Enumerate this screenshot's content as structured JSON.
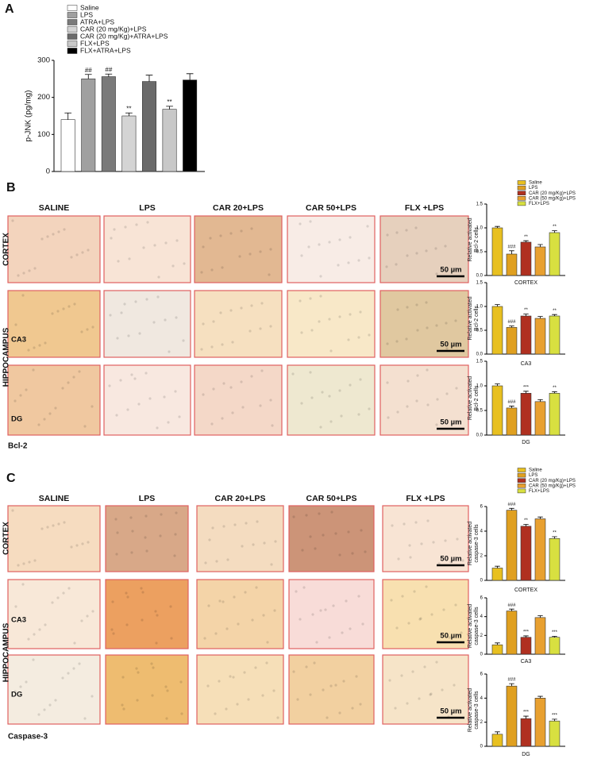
{
  "panels": [
    {
      "letter": "A"
    },
    {
      "letter": "B",
      "columns": [
        "SALINE",
        "LPS",
        "CAR 20+LPS",
        "CAR 50+LPS",
        "FLX +LPS"
      ],
      "rows": [
        "CORTEX",
        "HIPPOCAMPUS"
      ],
      "regions": [
        "CA3",
        "DG"
      ],
      "scale_bars": [
        "50 µm",
        "50 µm",
        "50 µm"
      ],
      "caption": "Bcl-2"
    },
    {
      "letter": "C",
      "columns": [
        "SALINE",
        "LPS",
        "CAR 20+LPS",
        "CAR 50+LPS",
        "FLX +LPS"
      ],
      "rows": [
        "CORTEX",
        "HIPPOCAMPUS"
      ],
      "regions": [
        "CA3",
        "DG"
      ],
      "scale_bars": [
        "50 µm",
        "50 µm",
        "50 µm"
      ],
      "caption": "Caspase-3"
    }
  ],
  "chart_data": [
    {
      "type": "bar",
      "ylabel": [
        "p-JNK (pg/mg)"
      ],
      "ylim": [
        0,
        300
      ],
      "yticks": [
        0,
        100,
        200,
        300
      ],
      "legend": true,
      "series": [
        {
          "name": "Saline",
          "color": "#ffffff",
          "values": [
            140
          ],
          "errors": [
            18
          ]
        },
        {
          "name": "LPS",
          "color": "#a0a0a0",
          "values": [
            250
          ],
          "errors": [
            12
          ],
          "annotation": "##"
        },
        {
          "name": "ATRA+LPS",
          "color": "#7a7a7a",
          "values": [
            256
          ],
          "errors": [
            7
          ],
          "annotation": "##"
        },
        {
          "name": "CAR (20 mg/Kg)+LPS",
          "color": "#d4d4d4",
          "values": [
            150
          ],
          "errors": [
            8
          ],
          "annotation": "**"
        },
        {
          "name": "CAR (20 mg/Kg)+ATRA+LPS",
          "color": "#6a6a6a",
          "values": [
            243
          ],
          "errors": [
            17
          ]
        },
        {
          "name": "FLX+LPS",
          "color": "#c8c8c8",
          "values": [
            168
          ],
          "errors": [
            8
          ],
          "annotation": "**"
        },
        {
          "name": "FLX+ATRA+LPS",
          "color": "#000000",
          "values": [
            247
          ],
          "errors": [
            17
          ]
        }
      ]
    },
    {
      "type": "bar",
      "ylabel": [
        "Relative activated",
        "Bcl-2 cells"
      ],
      "xlabel": "CORTEX",
      "ylim": [
        0,
        1.5
      ],
      "yticks": [
        {
          "value": 0,
          "label": "0.0"
        },
        0.5,
        {
          "value": 1,
          "label": "1.0"
        },
        1.5
      ],
      "legend": true,
      "series": [
        {
          "name": "Saline",
          "color": "#e8c020",
          "values": [
            1.0
          ],
          "errors": [
            0.03
          ]
        },
        {
          "name": "LPS",
          "color": "#e0a020",
          "values": [
            0.45
          ],
          "errors": [
            0.07
          ],
          "annotation": "###"
        },
        {
          "name": "CAR (20 mg/Kg)+LPS",
          "color": "#b03020",
          "values": [
            0.7
          ],
          "errors": [
            0.03
          ],
          "annotation": "**"
        },
        {
          "name": "CAR (50 mg/Kg)+LPS",
          "color": "#e8a030",
          "values": [
            0.6
          ],
          "errors": [
            0.05
          ]
        },
        {
          "name": "FLX+LPS",
          "color": "#d8e040",
          "values": [
            0.9
          ],
          "errors": [
            0.04
          ],
          "annotation": "**"
        }
      ]
    },
    {
      "type": "bar",
      "ylabel": [
        "Relative activated",
        "Bcl-2 cells"
      ],
      "xlabel": "CA3",
      "ylim": [
        0,
        1.5
      ],
      "yticks": [
        {
          "value": 0,
          "label": "0.0"
        },
        0.5,
        {
          "value": 1,
          "label": "1.0"
        },
        1.5
      ],
      "legend": false,
      "series": [
        {
          "color": "#e8c020",
          "values": [
            1.0
          ],
          "errors": [
            0.04
          ]
        },
        {
          "color": "#e0a020",
          "values": [
            0.56
          ],
          "errors": [
            0.03
          ],
          "annotation": "###"
        },
        {
          "color": "#b03020",
          "values": [
            0.8
          ],
          "errors": [
            0.04
          ],
          "annotation": "**"
        },
        {
          "color": "#e8a030",
          "values": [
            0.75
          ],
          "errors": [
            0.04
          ]
        },
        {
          "color": "#d8e040",
          "values": [
            0.8
          ],
          "errors": [
            0.03
          ],
          "annotation": "**"
        }
      ]
    },
    {
      "type": "bar",
      "ylabel": [
        "Relative activated",
        "Bcl-2 cells"
      ],
      "xlabel": "DG",
      "ylim": [
        0,
        1.5
      ],
      "yticks": [
        {
          "value": 0,
          "label": "0.0"
        },
        0.5,
        {
          "value": 1,
          "label": "1.0"
        },
        1.5
      ],
      "legend": false,
      "series": [
        {
          "color": "#e8c020",
          "values": [
            1.0
          ],
          "errors": [
            0.04
          ]
        },
        {
          "color": "#e0a020",
          "values": [
            0.55
          ],
          "errors": [
            0.04
          ],
          "annotation": "###"
        },
        {
          "color": "#b03020",
          "values": [
            0.85
          ],
          "errors": [
            0.04
          ],
          "annotation": "***"
        },
        {
          "color": "#e8a030",
          "values": [
            0.68
          ],
          "errors": [
            0.04
          ]
        },
        {
          "color": "#d8e040",
          "values": [
            0.85
          ],
          "errors": [
            0.03
          ],
          "annotation": "**"
        }
      ]
    },
    {
      "type": "bar",
      "ylabel": [
        "Relative activated",
        "caspase-3 cells"
      ],
      "xlabel": "CORTEX",
      "ylim": [
        0,
        6
      ],
      "yticks": [
        0,
        2,
        4,
        6
      ],
      "legend": true,
      "series": [
        {
          "name": "Saline",
          "color": "#e8c020",
          "values": [
            1.0
          ],
          "errors": [
            0.15
          ]
        },
        {
          "name": "LPS",
          "color": "#e0a020",
          "values": [
            5.7
          ],
          "errors": [
            0.15
          ],
          "annotation": "###"
        },
        {
          "name": "CAR (20 mg/Kg)+LPS",
          "color": "#b03020",
          "values": [
            4.4
          ],
          "errors": [
            0.15
          ],
          "annotation": "**"
        },
        {
          "name": "CAR (50 mg/Kg)+LPS",
          "color": "#e8a030",
          "values": [
            5.0
          ],
          "errors": [
            0.15
          ]
        },
        {
          "name": "FLX+LPS",
          "color": "#d8e040",
          "values": [
            3.4
          ],
          "errors": [
            0.15
          ],
          "annotation": "**"
        }
      ]
    },
    {
      "type": "bar",
      "ylabel": [
        "Relative activated",
        "caspase-3 cells"
      ],
      "xlabel": "CA3",
      "ylim": [
        0,
        6
      ],
      "yticks": [
        0,
        2,
        4,
        6
      ],
      "legend": false,
      "series": [
        {
          "color": "#e8c020",
          "values": [
            1.0
          ],
          "errors": [
            0.2
          ]
        },
        {
          "color": "#e0a020",
          "values": [
            4.6
          ],
          "errors": [
            0.2
          ],
          "annotation": "###"
        },
        {
          "color": "#b03020",
          "values": [
            1.8
          ],
          "errors": [
            0.15
          ],
          "annotation": "***"
        },
        {
          "color": "#e8a030",
          "values": [
            3.9
          ],
          "errors": [
            0.2
          ]
        },
        {
          "color": "#d8e040",
          "values": [
            1.8
          ],
          "errors": [
            0.1
          ],
          "annotation": "***"
        }
      ]
    },
    {
      "type": "bar",
      "ylabel": [
        "Relative activated",
        "caspase-3 cells"
      ],
      "xlabel": "DG",
      "ylim": [
        0,
        6
      ],
      "yticks": [
        0,
        2,
        4,
        6
      ],
      "legend": false,
      "series": [
        {
          "color": "#e8c020",
          "values": [
            1.0
          ],
          "errors": [
            0.2
          ]
        },
        {
          "color": "#e0a020",
          "values": [
            5.0
          ],
          "errors": [
            0.2
          ],
          "annotation": "###"
        },
        {
          "color": "#b03020",
          "values": [
            2.3
          ],
          "errors": [
            0.2
          ],
          "annotation": "***"
        },
        {
          "color": "#e8a030",
          "values": [
            4.0
          ],
          "errors": [
            0.15
          ]
        },
        {
          "color": "#d8e040",
          "values": [
            2.1
          ],
          "errors": [
            0.15
          ],
          "annotation": "***"
        }
      ]
    }
  ]
}
